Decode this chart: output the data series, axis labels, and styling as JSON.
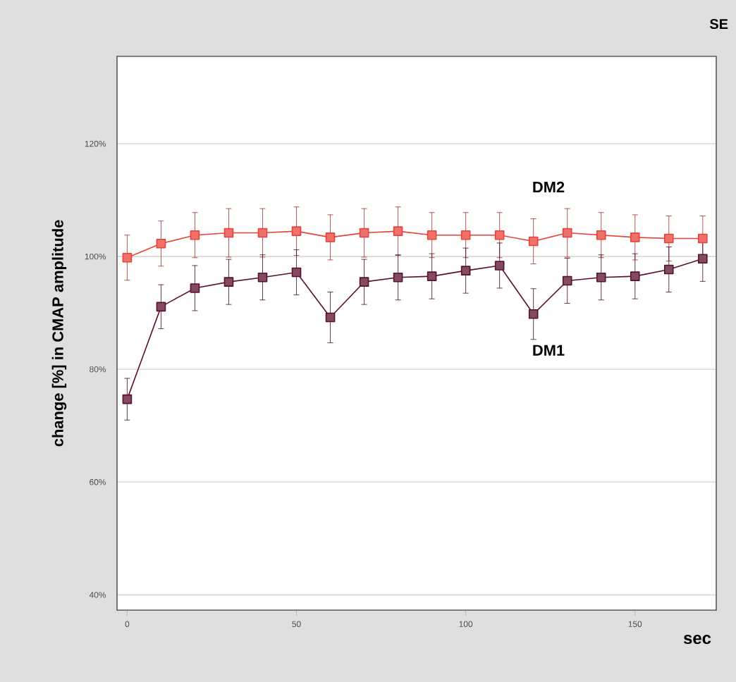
{
  "chart_data": {
    "type": "line",
    "xlabel": "sec",
    "ylabel": "change [%] in CMAP amplitude",
    "annotations": [
      "SE"
    ],
    "x": [
      0,
      10,
      20,
      30,
      40,
      50,
      60,
      70,
      80,
      90,
      100,
      110,
      120,
      130,
      140,
      150,
      160,
      170
    ],
    "series": [
      {
        "name": "DM2",
        "color": "#e8423a",
        "values": [
          99.8,
          102.3,
          103.8,
          104.2,
          104.2,
          104.5,
          103.4,
          104.2,
          104.5,
          103.8,
          103.8,
          103.8,
          102.7,
          104.2,
          103.8,
          103.4,
          103.2,
          103.2
        ],
        "errors": [
          4,
          4,
          4,
          4.3,
          4.3,
          4.3,
          4,
          4.3,
          4.3,
          4,
          4,
          4,
          4,
          4.3,
          4,
          4,
          4,
          4
        ]
      },
      {
        "name": "DM1",
        "color": "#5a0f2e",
        "values": [
          74.7,
          91.1,
          94.4,
          95.5,
          96.3,
          97.2,
          89.2,
          95.5,
          96.3,
          96.5,
          97.5,
          98.4,
          89.8,
          95.7,
          96.3,
          96.5,
          97.7,
          99.6
        ],
        "errors": [
          3.7,
          3.9,
          4,
          4,
          4,
          4,
          4.5,
          4,
          4,
          4,
          4,
          4,
          4.5,
          4,
          4,
          4,
          4,
          4
        ]
      }
    ],
    "xlim": [
      -3,
      174
    ],
    "ylim": [
      37.3,
      135.5
    ],
    "xticks": [
      0,
      50,
      100,
      150
    ],
    "yticks": [
      {
        "value": 40,
        "label": "40%"
      },
      {
        "value": 60,
        "label": "60%"
      },
      {
        "value": 80,
        "label": "80%"
      },
      {
        "value": 100,
        "label": "100%"
      },
      {
        "value": 120,
        "label": "120%"
      }
    ],
    "grid": "y",
    "legend": false,
    "marker": "square",
    "line_style": "solid"
  }
}
